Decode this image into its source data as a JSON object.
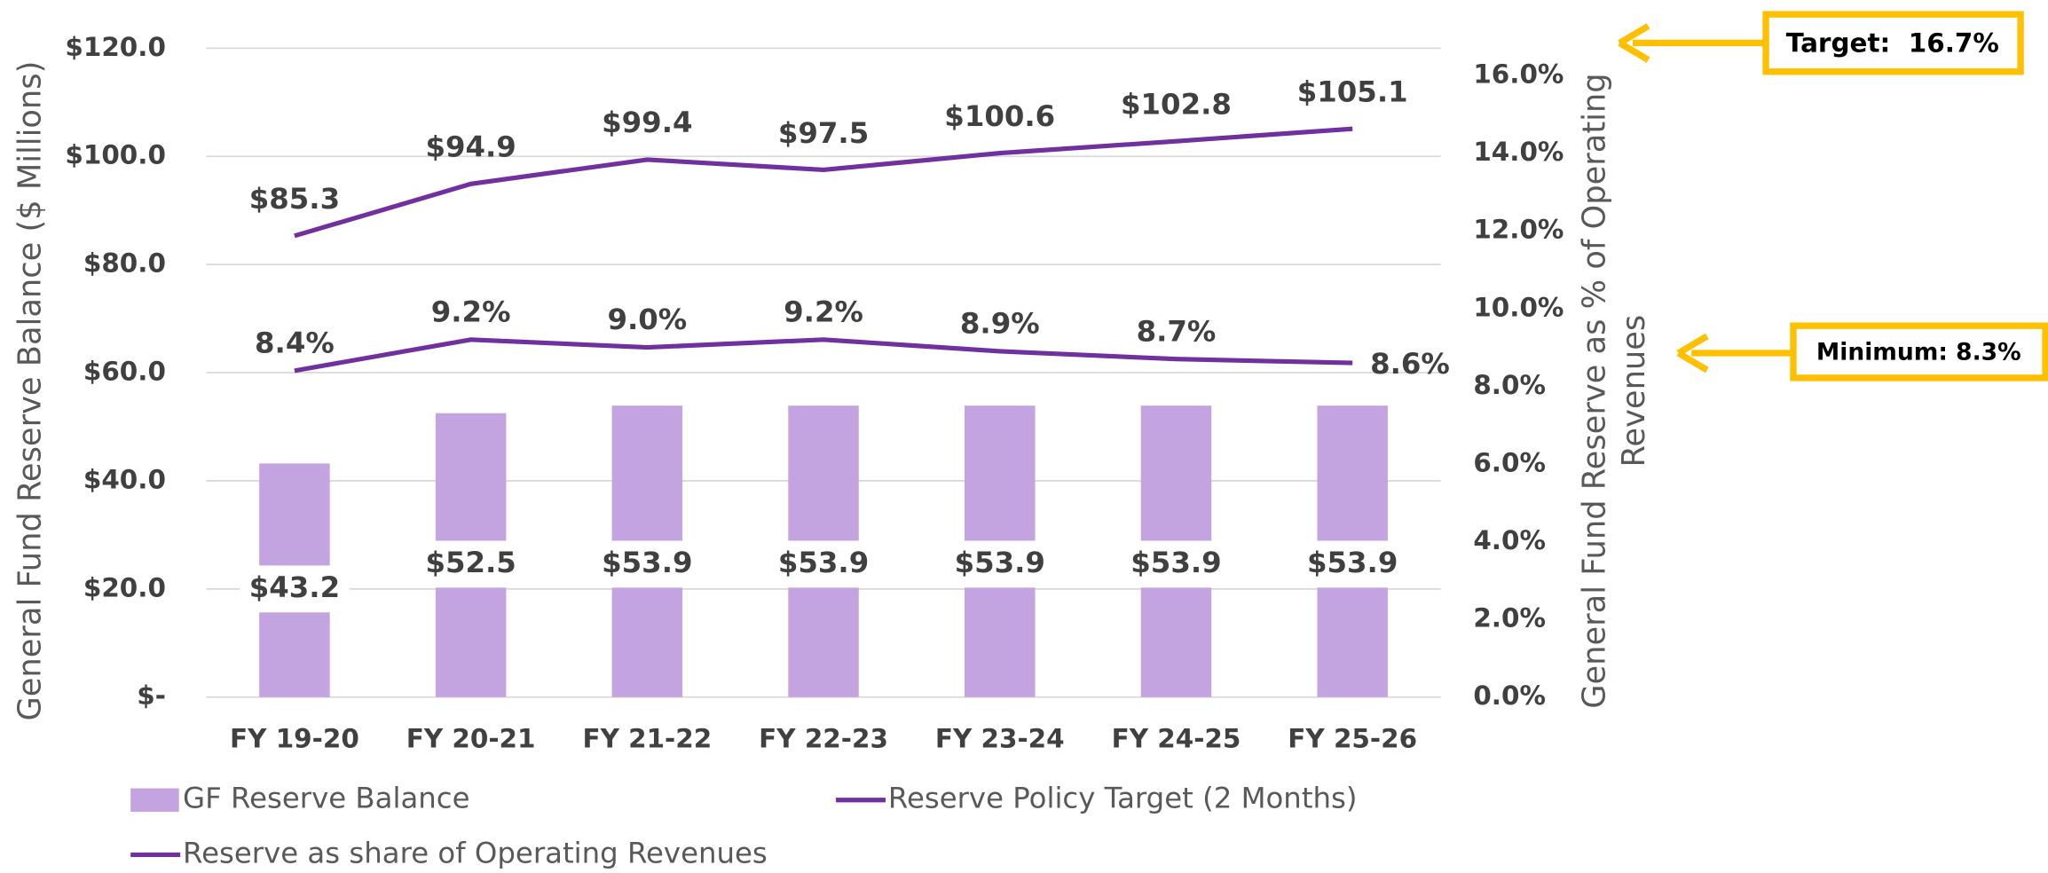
{
  "chart_data": {
    "type": "bar",
    "categories": [
      "FY 19-20",
      "FY 20-21",
      "FY 21-22",
      "FY 22-23",
      "FY 23-24",
      "FY 24-25",
      "FY 25-26"
    ],
    "series": [
      {
        "name": "GF Reserve Balance",
        "type": "bar",
        "color": "#c3a3e0",
        "axis": "y",
        "values": [
          43.2,
          52.5,
          53.9,
          53.9,
          53.9,
          53.9,
          53.9
        ],
        "value_labels": [
          "$43.2",
          "$52.5",
          "$53.9",
          "$53.9",
          "$53.9",
          "$53.9",
          "$53.9"
        ]
      },
      {
        "name": "Reserve Policy Target (2 Months)",
        "type": "line",
        "color": "#7030a0",
        "axis": "y",
        "values": [
          85.3,
          94.9,
          99.4,
          97.5,
          100.6,
          102.8,
          105.1
        ],
        "value_labels": [
          "$85.3",
          "$94.9",
          "$99.4",
          "$97.5",
          "$100.6",
          "$102.8",
          "$105.1"
        ]
      },
      {
        "name": "Reserve as share of Operating Revenues",
        "type": "line",
        "color": "#7030a0",
        "axis": "y2",
        "values": [
          8.4,
          9.2,
          9.0,
          9.2,
          8.9,
          8.7,
          8.6
        ],
        "value_labels": [
          "8.4%",
          "9.2%",
          "9.0%",
          "9.2%",
          "8.9%",
          "8.7%",
          "8.6%"
        ]
      }
    ],
    "ylabel": "General Fund Reserve Balance ($ Millions)",
    "y2label": [
      "General Fund Reserve as % of Operating",
      "Revenues"
    ],
    "ylim": [
      0,
      120
    ],
    "yticks": [
      {
        "value": 0,
        "label": "$-"
      },
      {
        "value": 20,
        "label": "$20.0"
      },
      {
        "value": 40,
        "label": "$40.0"
      },
      {
        "value": 60,
        "label": "$60.0"
      },
      {
        "value": 80,
        "label": "$80.0"
      },
      {
        "value": 100,
        "label": "$100.0"
      },
      {
        "value": 120,
        "label": "$120.0"
      }
    ],
    "y2lim": [
      0,
      16.7
    ],
    "y2ticks": [
      {
        "value": 0,
        "label": "0.0%"
      },
      {
        "value": 2,
        "label": "2.0%"
      },
      {
        "value": 4,
        "label": "4.0%"
      },
      {
        "value": 6,
        "label": "6.0%"
      },
      {
        "value": 8,
        "label": "8.0%"
      },
      {
        "value": 10,
        "label": "10.0%"
      },
      {
        "value": 12,
        "label": "12.0%"
      },
      {
        "value": 14,
        "label": "14.0%"
      },
      {
        "value": 16,
        "label": "16.0%"
      }
    ],
    "grid": true,
    "legend": "bottom",
    "annotations": [
      "Target:  16.7%",
      "Minimum: 8.3%"
    ]
  }
}
